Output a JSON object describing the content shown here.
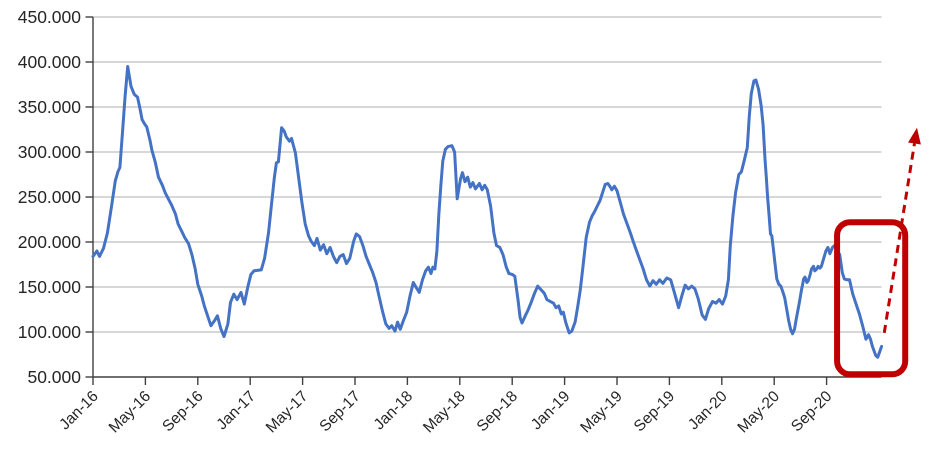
{
  "chart_data": {
    "type": "line",
    "title": "",
    "x_axis": {
      "tick_labels": [
        "Jan-16",
        "May-16",
        "Sep-16",
        "Jan-17",
        "May-17",
        "Sep-17",
        "Jan-18",
        "May-18",
        "Sep-18",
        "Jan-19",
        "May-19",
        "Sep-19",
        "Jan-20",
        "May-20",
        "Sep-20"
      ],
      "tick_step_months": 4,
      "range_months": [
        0,
        60.2
      ]
    },
    "y_axis": {
      "tick_labels": [
        "450.000",
        "400.000",
        "350.000",
        "300.000",
        "250.000",
        "200.000",
        "150.000",
        "100.000",
        "50.000"
      ],
      "tick_values": [
        450,
        400,
        350,
        300,
        250,
        200,
        150,
        100,
        50
      ],
      "unit": "thousands",
      "range": [
        50,
        450
      ]
    },
    "gridlines": {
      "show": true,
      "values": [
        100,
        150,
        200,
        250,
        300,
        350,
        400,
        450
      ]
    },
    "legend": {
      "show": false
    },
    "series": [
      {
        "id": "main-series",
        "color": "#4472C4",
        "stroke_width": 3,
        "points_month_value": [
          [
            0,
            184
          ],
          [
            0.3,
            190
          ],
          [
            0.5,
            184
          ],
          [
            0.8,
            193
          ],
          [
            1.1,
            210
          ],
          [
            1.4,
            238
          ],
          [
            1.7,
            268
          ],
          [
            1.9,
            278
          ],
          [
            2.05,
            283
          ],
          [
            2.25,
            322
          ],
          [
            2.45,
            362
          ],
          [
            2.65,
            395
          ],
          [
            2.9,
            373
          ],
          [
            3.15,
            364
          ],
          [
            3.4,
            361
          ],
          [
            3.6,
            347
          ],
          [
            3.75,
            336
          ],
          [
            3.95,
            331
          ],
          [
            4.1,
            328
          ],
          [
            4.35,
            313
          ],
          [
            4.5,
            302
          ],
          [
            4.75,
            289
          ],
          [
            5,
            272
          ],
          [
            5.3,
            263
          ],
          [
            5.5,
            255
          ],
          [
            5.75,
            248
          ],
          [
            6,
            241
          ],
          [
            6.3,
            231
          ],
          [
            6.5,
            220
          ],
          [
            6.8,
            211
          ],
          [
            7,
            205
          ],
          [
            7.3,
            198
          ],
          [
            7.55,
            186
          ],
          [
            7.8,
            170
          ],
          [
            8,
            153
          ],
          [
            8.3,
            140
          ],
          [
            8.5,
            129
          ],
          [
            8.75,
            118
          ],
          [
            9,
            107
          ],
          [
            9.3,
            113
          ],
          [
            9.5,
            118
          ],
          [
            9.75,
            104
          ],
          [
            10,
            95
          ],
          [
            10.3,
            109
          ],
          [
            10.5,
            133
          ],
          [
            10.75,
            142
          ],
          [
            11,
            136
          ],
          [
            11.3,
            144
          ],
          [
            11.55,
            131
          ],
          [
            11.8,
            149
          ],
          [
            12.05,
            164
          ],
          [
            12.3,
            168
          ],
          [
            12.85,
            169
          ],
          [
            13.1,
            182
          ],
          [
            13.4,
            210
          ],
          [
            13.65,
            245
          ],
          [
            13.85,
            272
          ],
          [
            14,
            288
          ],
          [
            14.15,
            289
          ],
          [
            14.4,
            327
          ],
          [
            14.6,
            323
          ],
          [
            14.75,
            317
          ],
          [
            15,
            312
          ],
          [
            15.15,
            315
          ],
          [
            15.45,
            299
          ],
          [
            15.7,
            271
          ],
          [
            15.95,
            244
          ],
          [
            16.2,
            220
          ],
          [
            16.45,
            207
          ],
          [
            16.65,
            201
          ],
          [
            16.9,
            196
          ],
          [
            17.1,
            204
          ],
          [
            17.35,
            191
          ],
          [
            17.6,
            197
          ],
          [
            17.85,
            187
          ],
          [
            18.1,
            194
          ],
          [
            18.35,
            184
          ],
          [
            18.6,
            177
          ],
          [
            18.85,
            184
          ],
          [
            19.1,
            186
          ],
          [
            19.35,
            176
          ],
          [
            19.6,
            182
          ],
          [
            19.9,
            201
          ],
          [
            20.1,
            209
          ],
          [
            20.35,
            206
          ],
          [
            20.6,
            196
          ],
          [
            20.85,
            184
          ],
          [
            21.1,
            175
          ],
          [
            21.35,
            166
          ],
          [
            21.6,
            155
          ],
          [
            21.85,
            139
          ],
          [
            22.1,
            123
          ],
          [
            22.35,
            109
          ],
          [
            22.6,
            104
          ],
          [
            22.8,
            107
          ],
          [
            23.05,
            101
          ],
          [
            23.25,
            111
          ],
          [
            23.45,
            103
          ],
          [
            23.7,
            113
          ],
          [
            23.95,
            122
          ],
          [
            24.2,
            140
          ],
          [
            24.45,
            155
          ],
          [
            24.65,
            150
          ],
          [
            24.9,
            144
          ],
          [
            25.15,
            158
          ],
          [
            25.4,
            168
          ],
          [
            25.6,
            172
          ],
          [
            25.8,
            165
          ],
          [
            25.95,
            172
          ],
          [
            26.1,
            170
          ],
          [
            26.25,
            190
          ],
          [
            26.4,
            230
          ],
          [
            26.55,
            262
          ],
          [
            26.7,
            290
          ],
          [
            26.9,
            303
          ],
          [
            27.1,
            306
          ],
          [
            27.4,
            307
          ],
          [
            27.6,
            300
          ],
          [
            27.8,
            248
          ],
          [
            28.05,
            270
          ],
          [
            28.2,
            277
          ],
          [
            28.4,
            267
          ],
          [
            28.6,
            272
          ],
          [
            28.8,
            261
          ],
          [
            29,
            266
          ],
          [
            29.2,
            259
          ],
          [
            29.5,
            265
          ],
          [
            29.7,
            258
          ],
          [
            29.9,
            263
          ],
          [
            30.1,
            258
          ],
          [
            30.35,
            240
          ],
          [
            30.6,
            210
          ],
          [
            30.8,
            196
          ],
          [
            31.05,
            194
          ],
          [
            31.3,
            186
          ],
          [
            31.55,
            172
          ],
          [
            31.75,
            165
          ],
          [
            32,
            164
          ],
          [
            32.2,
            162
          ],
          [
            32.45,
            135
          ],
          [
            32.6,
            116
          ],
          [
            32.75,
            110
          ],
          [
            33,
            118
          ],
          [
            33.2,
            124
          ],
          [
            33.45,
            133
          ],
          [
            33.7,
            143
          ],
          [
            33.95,
            151
          ],
          [
            34.2,
            147
          ],
          [
            34.45,
            143
          ],
          [
            34.65,
            136
          ],
          [
            34.9,
            134
          ],
          [
            35.15,
            132
          ],
          [
            35.35,
            127
          ],
          [
            35.55,
            129
          ],
          [
            35.75,
            120
          ],
          [
            35.9,
            122
          ],
          [
            36.1,
            110
          ],
          [
            36.35,
            99
          ],
          [
            36.55,
            101
          ],
          [
            36.8,
            111
          ],
          [
            37,
            128
          ],
          [
            37.2,
            147
          ],
          [
            37.4,
            172
          ],
          [
            37.65,
            205
          ],
          [
            37.9,
            222
          ],
          [
            38.1,
            229
          ],
          [
            38.3,
            234
          ],
          [
            38.5,
            240
          ],
          [
            38.7,
            246
          ],
          [
            38.9,
            255
          ],
          [
            39.1,
            264
          ],
          [
            39.3,
            265
          ],
          [
            39.45,
            262
          ],
          [
            39.6,
            258
          ],
          [
            39.8,
            262
          ],
          [
            40,
            257
          ],
          [
            40.25,
            244
          ],
          [
            40.5,
            231
          ],
          [
            40.75,
            221
          ],
          [
            41,
            211
          ],
          [
            41.25,
            200
          ],
          [
            41.5,
            190
          ],
          [
            41.75,
            180
          ],
          [
            42,
            170
          ],
          [
            42.25,
            158
          ],
          [
            42.5,
            151
          ],
          [
            42.75,
            157
          ],
          [
            43,
            153
          ],
          [
            43.25,
            158
          ],
          [
            43.5,
            154
          ],
          [
            43.8,
            160
          ],
          [
            44.1,
            158
          ],
          [
            44.4,
            143
          ],
          [
            44.7,
            127
          ],
          [
            44.95,
            140
          ],
          [
            45.2,
            152
          ],
          [
            45.45,
            148
          ],
          [
            45.7,
            151
          ],
          [
            45.95,
            148
          ],
          [
            46.2,
            137
          ],
          [
            46.5,
            119
          ],
          [
            46.75,
            114
          ],
          [
            47,
            126
          ],
          [
            47.3,
            134
          ],
          [
            47.55,
            132
          ],
          [
            47.8,
            136
          ],
          [
            48.05,
            131
          ],
          [
            48.3,
            140
          ],
          [
            48.5,
            158
          ],
          [
            48.65,
            196
          ],
          [
            48.85,
            229
          ],
          [
            49.05,
            255
          ],
          [
            49.3,
            275
          ],
          [
            49.5,
            278
          ],
          [
            49.7,
            290
          ],
          [
            49.95,
            305
          ],
          [
            50.1,
            340
          ],
          [
            50.25,
            365
          ],
          [
            50.45,
            379
          ],
          [
            50.6,
            380
          ],
          [
            50.8,
            370
          ],
          [
            51,
            352
          ],
          [
            51.15,
            330
          ],
          [
            51.3,
            292
          ],
          [
            51.4,
            272
          ],
          [
            51.5,
            250
          ],
          [
            51.62,
            228
          ],
          [
            51.72,
            209
          ],
          [
            51.82,
            207
          ],
          [
            51.92,
            194
          ],
          [
            52.05,
            177
          ],
          [
            52.2,
            159
          ],
          [
            52.35,
            153
          ],
          [
            52.5,
            151
          ],
          [
            52.65,
            145
          ],
          [
            52.8,
            138
          ],
          [
            52.95,
            126
          ],
          [
            53.1,
            113
          ],
          [
            53.25,
            103
          ],
          [
            53.4,
            98
          ],
          [
            53.55,
            103
          ],
          [
            53.7,
            116
          ],
          [
            53.85,
            127
          ],
          [
            53.95,
            135
          ],
          [
            54.1,
            148
          ],
          [
            54.25,
            159
          ],
          [
            54.35,
            161
          ],
          [
            54.5,
            155
          ],
          [
            54.6,
            157
          ],
          [
            54.75,
            164
          ],
          [
            54.85,
            170
          ],
          [
            55,
            173
          ],
          [
            55.1,
            168
          ],
          [
            55.25,
            170
          ],
          [
            55.35,
            173
          ],
          [
            55.5,
            171
          ],
          [
            55.6,
            173
          ],
          [
            55.8,
            183
          ],
          [
            55.95,
            190
          ],
          [
            56.1,
            194
          ],
          [
            56.25,
            187
          ],
          [
            56.45,
            194
          ],
          [
            56.6,
            196
          ],
          [
            56.8,
            191
          ],
          [
            57,
            186
          ],
          [
            57.2,
            166
          ],
          [
            57.35,
            159
          ],
          [
            57.55,
            158
          ],
          [
            57.75,
            158
          ],
          [
            58,
            142
          ],
          [
            58.25,
            131
          ],
          [
            58.5,
            120
          ],
          [
            58.75,
            107
          ],
          [
            59,
            92
          ],
          [
            59.2,
            97
          ],
          [
            59.35,
            92
          ],
          [
            59.5,
            84
          ],
          [
            59.75,
            74
          ],
          [
            59.9,
            72
          ],
          [
            60.05,
            78
          ],
          [
            60.2,
            84
          ]
        ]
      }
    ],
    "annotations": {
      "highlight_box": {
        "shape": "rounded-rect",
        "color": "#C00000",
        "stroke_width": 6,
        "corner_radius": 13,
        "month_from": 56.8,
        "month_to": 62.0,
        "value_min": 53,
        "value_max": 222
      },
      "trend_arrow": {
        "style": "dashed",
        "color": "#C00000",
        "stroke_width": 3,
        "dash": [
          8,
          5.5
        ],
        "from_month_value": [
          60.4,
          99
        ],
        "to_month_value": [
          62.9,
          327
        ]
      }
    },
    "colors": {
      "series": "#4472C4",
      "annotation": "#C00000",
      "gridline": "#BFBFBF",
      "axis": "#404040",
      "tick_label": "#262626"
    }
  }
}
